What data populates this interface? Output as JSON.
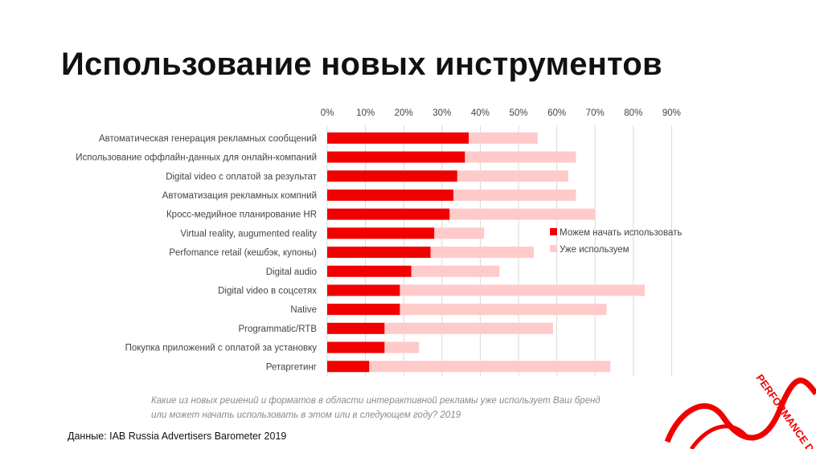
{
  "slide": {
    "title": "Использование новых инструментов",
    "note": "Какие из новых решений и форматов в области интерактивной рекламы уже использует Ваш бренд или может начать использовать в этом или в следующем году? 2019",
    "source": "Данные: IAB Russia Advertisers Barometer 2019",
    "decoration_text": "PERFORMANCE DAY"
  },
  "colors": {
    "can_start": "#f10000",
    "already_use": "#ffcaca",
    "grid": "#d9d9d9",
    "text": "#444444"
  },
  "chart_data": {
    "type": "bar",
    "orientation": "horizontal",
    "stacked": true,
    "title": "Использование новых инструментов",
    "xlabel": "",
    "ylabel": "",
    "xlim": [
      0,
      90
    ],
    "x_ticks": [
      "0%",
      "10%",
      "20%",
      "30%",
      "40%",
      "50%",
      "60%",
      "70%",
      "80%",
      "90%"
    ],
    "grid": true,
    "legend_position": "right",
    "categories": [
      "Автоматическая генерация рекламных сообщений",
      "Использование оффлайн-данных для онлайн-компаний",
      "Digital video с оплатой за результат",
      "Автоматизация рекламных компний",
      "Кросс-медийное планирование HR",
      "Virtual reality, augumented reality",
      "Perfomance retail (кешбэк, купоны)",
      "Digital audio",
      "Digital video в соцсетях",
      "Native",
      "Programmatic/RTB",
      "Покупка приложений с оплатой за установку",
      "Ретаргетинг"
    ],
    "series": [
      {
        "name": "Можем начать использовать",
        "values": [
          37,
          36,
          34,
          33,
          32,
          28,
          27,
          22,
          19,
          19,
          15,
          15,
          11
        ]
      },
      {
        "name": "Уже используем",
        "values": [
          18,
          29,
          29,
          32,
          38,
          13,
          27,
          23,
          64,
          54,
          44,
          9,
          63
        ]
      }
    ]
  }
}
